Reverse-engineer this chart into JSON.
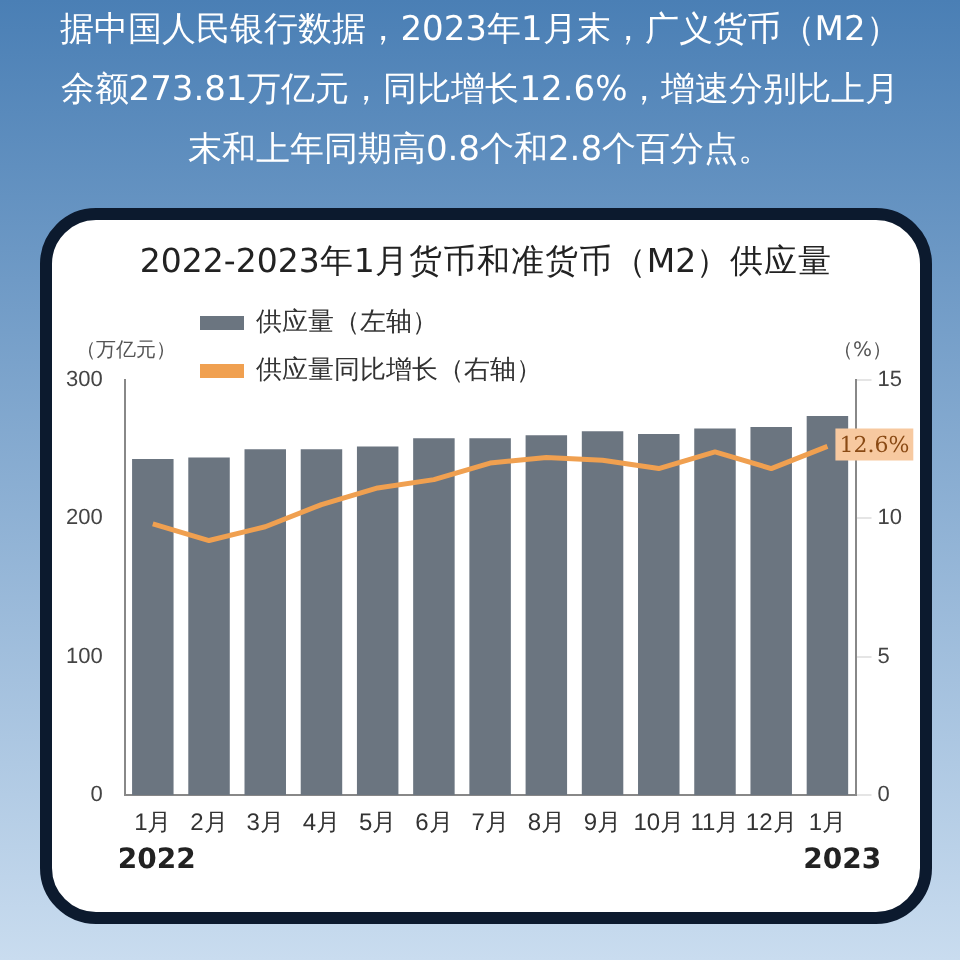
{
  "chart_data": {
    "type": "bar",
    "title": "2022-2023年1月货币和准货币（M2）供应量",
    "subtitle": "据中国人民银行数据，2023年1月末，广义货币（M2）余额273.81万亿元，同比增长12.6%，增速分别比上月末和上年同期高0.8个和2.8个百分点。",
    "ylabel": "（万亿元）",
    "y2label": "（%）",
    "categories": [
      "1月",
      "2月",
      "3月",
      "4月",
      "5月",
      "6月",
      "7月",
      "8月",
      "9月",
      "10月",
      "11月",
      "12月",
      "1月"
    ],
    "series": [
      {
        "name": "供应量（左轴）",
        "color": "#6b7580",
        "values": [
          243,
          244,
          250,
          250,
          252,
          258,
          258,
          260,
          263,
          261,
          265,
          266,
          274
        ]
      },
      {
        "name": "供应量同比增长（右轴）",
        "type": "line",
        "axis": "y2",
        "color": "#f0a050",
        "values": [
          9.8,
          9.2,
          9.7,
          10.5,
          11.1,
          11.4,
          12.0,
          12.2,
          12.1,
          11.8,
          12.4,
          11.8,
          12.6
        ],
        "value_labels": [
          null,
          null,
          null,
          null,
          null,
          null,
          null,
          null,
          null,
          null,
          null,
          null,
          "12.6%"
        ]
      }
    ],
    "ylim": [
      0,
      300
    ],
    "yticks": [
      0,
      100,
      200,
      300
    ],
    "y2lim": [
      0,
      15
    ],
    "y2ticks": [
      0,
      5,
      10,
      15
    ],
    "annotations": [
      "2022",
      "2023"
    ],
    "grid": false,
    "legend": "top left",
    "marker": "none"
  }
}
